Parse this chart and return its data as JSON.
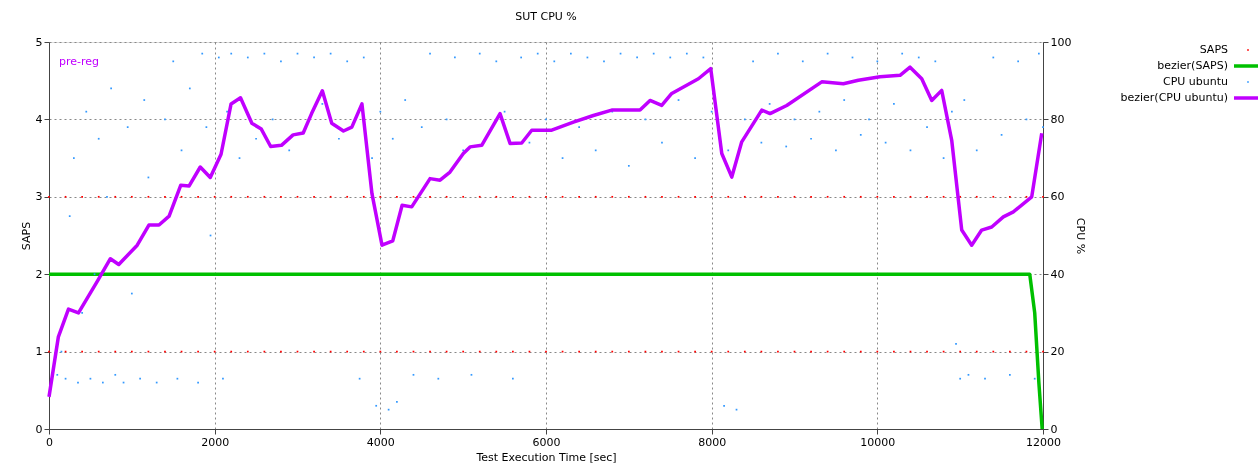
{
  "chart_data": {
    "type": "scatter",
    "title": "SUT CPU %",
    "xlabel": "Test Execution Time [sec]",
    "ylabel": "SAPS",
    "y2label": "CPU %",
    "annotations": [
      "pre-reg"
    ],
    "xlim": [
      0,
      12000
    ],
    "xticks": [
      0,
      2000,
      4000,
      6000,
      8000,
      10000,
      12000
    ],
    "ylim": [
      0,
      5
    ],
    "yticks": [
      0,
      1,
      2,
      3,
      4,
      5
    ],
    "y2lim": [
      0,
      100
    ],
    "y2ticks": [
      0,
      20,
      40,
      60,
      80,
      100
    ],
    "grid": true,
    "legend": "top right",
    "series": [
      {
        "name": "SAPS",
        "color": "#ff0000",
        "x": [
          0,
          200,
          400,
          600,
          800,
          1000,
          1200,
          1400,
          1600,
          1800,
          2000,
          2200,
          2400,
          2600,
          2800,
          3000,
          3200,
          3400,
          3600,
          3800,
          4000,
          4200,
          4400,
          4600,
          4800,
          5000,
          5200,
          5400,
          5600,
          5800,
          6000,
          6200,
          6400,
          6600,
          6800,
          7000,
          7200,
          7400,
          7600,
          7800,
          8000,
          8200,
          8400,
          8600,
          8800,
          9000,
          9200,
          9400,
          9600,
          9800,
          10000,
          10200,
          10400,
          10600,
          10800,
          11000,
          11200,
          11400,
          11600,
          11800,
          12000,
          0,
          200,
          400,
          600,
          800,
          1000,
          1200,
          1400,
          1600,
          1800,
          2000,
          2200,
          2400,
          2600,
          2800,
          3000,
          3200,
          3400,
          3600,
          3800,
          4000,
          4200,
          4400,
          4600,
          4800,
          5000,
          5200,
          5400,
          5600,
          5800,
          6000,
          6200,
          6400,
          6600,
          6800,
          7000,
          7200,
          7400,
          7600,
          7800,
          8000,
          8200,
          8400,
          8600,
          8800,
          9000,
          9200,
          9400,
          9600,
          9800,
          10000,
          10200,
          10400,
          10600,
          10800,
          11000,
          11200,
          11400,
          11600,
          11800,
          12000
        ],
        "values": [
          1,
          1,
          1,
          1,
          1,
          1,
          1,
          1,
          1,
          1,
          1,
          1,
          1,
          1,
          1,
          1,
          1,
          1,
          1,
          1,
          1,
          1,
          1,
          1,
          1,
          1,
          1,
          1,
          1,
          1,
          1,
          1,
          1,
          1,
          1,
          1,
          1,
          1,
          1,
          1,
          1,
          1,
          1,
          1,
          1,
          1,
          1,
          1,
          1,
          1,
          1,
          1,
          1,
          1,
          1,
          1,
          1,
          1,
          1,
          1,
          1,
          3,
          3,
          3,
          3,
          3,
          3,
          3,
          3,
          3,
          3,
          3,
          3,
          3,
          3,
          3,
          3,
          3,
          3,
          3,
          3,
          3,
          3,
          3,
          3,
          3,
          3,
          3,
          3,
          3,
          3,
          3,
          3,
          3,
          3,
          3,
          3,
          3,
          3,
          3,
          3,
          3,
          3,
          3,
          3,
          3,
          3,
          3,
          3,
          3,
          3,
          3,
          3,
          3,
          3,
          3,
          3,
          3,
          3,
          3,
          3,
          3
        ]
      },
      {
        "name": "bezier(SAPS)",
        "type": "line",
        "color": "#00c000",
        "x": [
          0,
          11840,
          11900,
          11950,
          11990
        ],
        "values": [
          2,
          2,
          1.5,
          0.6,
          0
        ]
      },
      {
        "name": "CPU ubuntu",
        "axis": "y2",
        "color": "#3399ff",
        "x": [
          100,
          150,
          200,
          250,
          300,
          350,
          400,
          450,
          500,
          550,
          600,
          650,
          700,
          750,
          800,
          900,
          950,
          1000,
          1100,
          1150,
          1200,
          1300,
          1400,
          1500,
          1550,
          1600,
          1700,
          1800,
          1850,
          1900,
          1950,
          2050,
          2100,
          2150,
          2200,
          2300,
          2400,
          2500,
          2600,
          2700,
          2800,
          2900,
          3000,
          3200,
          3300,
          3400,
          3500,
          3600,
          3750,
          3800,
          3900,
          3950,
          4000,
          4100,
          4150,
          4200,
          4300,
          4400,
          4500,
          4600,
          4700,
          4800,
          4900,
          5000,
          5100,
          5200,
          5400,
          5500,
          5600,
          5700,
          5800,
          5900,
          6000,
          6100,
          6200,
          6300,
          6400,
          6500,
          6600,
          6700,
          6800,
          6900,
          7000,
          7100,
          7200,
          7300,
          7400,
          7500,
          7600,
          7700,
          7800,
          7900,
          8000,
          8150,
          8200,
          8300,
          8400,
          8500,
          8600,
          8700,
          8800,
          8900,
          9000,
          9100,
          9200,
          9300,
          9400,
          9500,
          9600,
          9700,
          9800,
          9900,
          10000,
          10100,
          10200,
          10300,
          10400,
          10500,
          10600,
          10700,
          10800,
          10900,
          10950,
          11000,
          11050,
          11100,
          11200,
          11300,
          11400,
          11500,
          11600,
          11700,
          11800,
          11900,
          11950,
          12000
        ],
        "values": [
          14,
          20,
          13,
          55,
          70,
          12,
          30,
          82,
          13,
          40,
          75,
          12,
          60,
          88,
          14,
          12,
          78,
          35,
          13,
          85,
          65,
          12,
          80,
          95,
          13,
          72,
          88,
          12,
          97,
          78,
          50,
          96,
          13,
          82,
          97,
          70,
          96,
          75,
          97,
          80,
          95,
          72,
          97,
          96,
          84,
          97,
          75,
          95,
          13,
          96,
          70,
          6,
          82,
          5,
          75,
          7,
          85,
          14,
          78,
          97,
          13,
          80,
          96,
          72,
          14,
          97,
          95,
          82,
          13,
          96,
          74,
          97,
          80,
          95,
          70,
          97,
          78,
          96,
          72,
          95,
          82,
          97,
          68,
          96,
          80,
          97,
          74,
          96,
          85,
          97,
          70,
          96,
          82,
          6,
          72,
          5,
          80,
          95,
          74,
          84,
          97,
          73,
          80,
          95,
          75,
          82,
          97,
          72,
          85,
          96,
          76,
          80,
          95,
          74,
          84,
          97,
          72,
          96,
          78,
          95,
          70,
          82,
          22,
          13,
          85,
          14,
          72,
          13,
          96,
          76,
          14,
          95,
          80,
          13,
          97,
          78
        ]
      },
      {
        "name": "bezier(CPU ubuntu)",
        "type": "line",
        "axis": "y2",
        "color": "#c000ff",
        "x": [
          0,
          113,
          235,
          356,
          579,
          741,
          842,
          1065,
          1206,
          1328,
          1450,
          1591,
          1692,
          1826,
          1947,
          2077,
          2198,
          2312,
          2449,
          2563,
          2676,
          2806,
          2947,
          3069,
          3170,
          3300,
          3413,
          3555,
          3656,
          3778,
          3899,
          4020,
          4150,
          4263,
          4379,
          4600,
          4721,
          4841,
          5002,
          5083,
          5224,
          5445,
          5566,
          5707,
          5828,
          6069,
          6331,
          6572,
          6793,
          7135,
          7256,
          7397,
          7518,
          7840,
          7989,
          8122,
          8243,
          8363,
          8605,
          8705,
          8906,
          9329,
          9590,
          9771,
          10033,
          10274,
          10395,
          10536,
          10657,
          10777,
          10898,
          11019,
          11139,
          11260,
          11381,
          11521,
          11642,
          11864,
          11985
        ],
        "values": [
          8.3,
          23.8,
          31,
          30,
          38,
          44,
          42.5,
          47.5,
          52.7,
          52.7,
          55,
          63,
          62.8,
          67.7,
          65,
          71,
          84,
          85.6,
          79,
          77.5,
          73,
          73.3,
          76,
          76.5,
          81.5,
          87.4,
          79,
          77,
          78,
          84,
          60.8,
          47.5,
          48.6,
          57.8,
          57.4,
          64.7,
          64.3,
          66.4,
          71.2,
          72.9,
          73.3,
          81.5,
          73.8,
          73.9,
          77.2,
          77.2,
          79.3,
          81,
          82.4,
          82.4,
          84.9,
          83.6,
          86.7,
          90.5,
          93.1,
          71.2,
          65.1,
          74.2,
          82.4,
          81.5,
          83.6,
          89.7,
          89.2,
          90.1,
          91,
          91.4,
          93.5,
          90.5,
          84.9,
          87.5,
          74.6,
          51.4,
          47.5,
          51.4,
          52.2,
          54.8,
          56.1,
          60,
          76.4
        ]
      }
    ]
  }
}
